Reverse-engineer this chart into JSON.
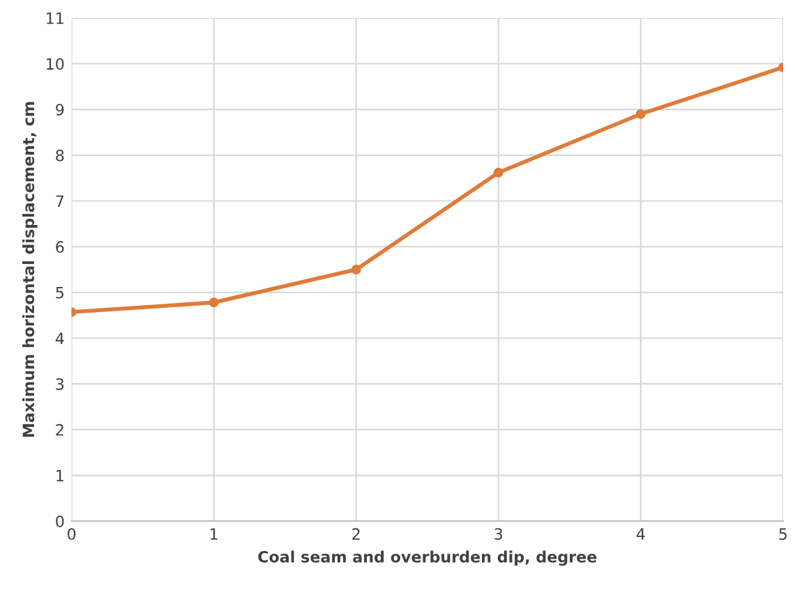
{
  "chart_data": {
    "type": "line",
    "xlabel": "Coal seam and overburden dip, degree",
    "ylabel": "Maximum horizontal displacement, cm",
    "x": [
      0,
      1,
      2,
      3,
      4,
      5
    ],
    "series": [
      {
        "color": "#e07b39",
        "values": [
          4.57,
          4.78,
          5.5,
          7.62,
          8.9,
          9.92
        ]
      }
    ],
    "xlim": [
      0,
      5
    ],
    "xticks": [
      0,
      1,
      2,
      3,
      4,
      5
    ],
    "ylim": [
      0,
      11
    ],
    "yticks": [
      0,
      1,
      2,
      3,
      4,
      5,
      6,
      7,
      8,
      9,
      10,
      11
    ],
    "grid": true,
    "marker": "circle",
    "line_style": "solid"
  }
}
